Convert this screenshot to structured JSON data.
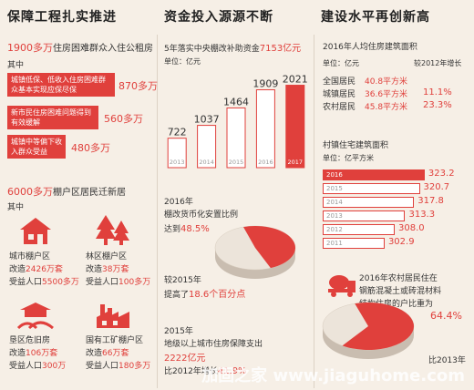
{
  "col1": {
    "heading": "保障工程扎实推进",
    "line1_num": "1900多万",
    "line1_text": "住房困难群众入住公租房",
    "sub": "其中",
    "groups": [
      {
        "label": "城镇低保、低收入住房困难群众基本实现应保尽保",
        "value": "870多万"
      },
      {
        "label": "新市民住房困难问题得到有效缓解",
        "value": "560多万"
      },
      {
        "label": "城镇中等偏下收入群众受益",
        "value": "480多万"
      }
    ],
    "line2_num": "6000多万",
    "line2_text": "棚户区居民迁新居",
    "sub2": "其中",
    "areas": [
      {
        "name": "城市棚户区",
        "rebuild_label": "改造",
        "rebuild": "2426万套",
        "people_label": "受益人口",
        "people": "5500多万"
      },
      {
        "name": "林区棚户区",
        "rebuild_label": "改造",
        "rebuild": "38万套",
        "people_label": "受益人口",
        "people": "100多万"
      },
      {
        "name": "垦区危旧房",
        "rebuild_label": "改造",
        "rebuild": "106万套",
        "people_label": "受益人口",
        "people": "300万"
      },
      {
        "name": "国有工矿棚户区",
        "rebuild_label": "改造",
        "rebuild": "66万套",
        "people_label": "受益人口",
        "people": "180多万"
      }
    ]
  },
  "col2": {
    "heading": "资金投入源源不断",
    "subtitle_text": "5年落实中央棚改补助资金",
    "subtitle_num": "7153亿元",
    "unit": "单位：亿元",
    "year_label": "2016年",
    "pie_title": "棚改货币化安置比例",
    "pie_pre": "达到",
    "pie_val": "48.5%",
    "pie_note1": "较2015年",
    "pie_note2_pre": "提高了",
    "pie_note2_num": "18.6个百分点",
    "bottom_year": "2015年",
    "bottom_line1": "地级以上城市住房保障支出",
    "bottom_line2": "2222亿元",
    "bottom_line3_pre": "比2012年增长",
    "bottom_line3_num": "41.9%"
  },
  "col3": {
    "heading": "建设水平再创新高",
    "table_title": "2016年人均住房建筑面积",
    "col_unit": "单位：亿元",
    "col_growth": "较2012年增长",
    "rows": [
      {
        "name": "全国居民",
        "area": "40.8平方米",
        "growth": ""
      },
      {
        "name": "城镇居民",
        "area": "36.6平方米",
        "growth": "11.1%"
      },
      {
        "name": "农村居民",
        "area": "45.8平方米",
        "growth": "23.3%"
      }
    ],
    "bar_title": "村镇住宅建筑面积",
    "bar_unit": "单位：亿平方米",
    "pie_text1": "2016年农村居民住在",
    "pie_text2": "钢筋混凝土或砖混材料",
    "pie_text3": "结构住房的户比重为",
    "pie_val": "64.4%",
    "pie_note": "比2013年",
    "watermark": "加固之家 www.jiaguhome.com"
  },
  "colors": {
    "accent": "#e0403c",
    "bg": "#f6efe6"
  },
  "chart_data": [
    {
      "type": "bar",
      "title": "5年落实中央棚改补助资金7153亿元",
      "ylabel": "单位：亿元",
      "categories": [
        "2013",
        "2014",
        "2015",
        "2016",
        "2017"
      ],
      "values": [
        722,
        1037,
        1464,
        1909,
        2021
      ],
      "ylim": [
        0,
        2100
      ]
    },
    {
      "type": "bar",
      "title": "村镇住宅建筑面积",
      "ylabel": "单位：亿平方米",
      "categories": [
        "2016",
        "2015",
        "2014",
        "2013",
        "2012",
        "2011"
      ],
      "values": [
        323.2,
        320.7,
        317.8,
        313.3,
        308.0,
        302.9
      ]
    },
    {
      "type": "pie",
      "title": "棚改货币化安置比例",
      "values": [
        48.5,
        51.5
      ]
    },
    {
      "type": "pie",
      "values": [
        64.4,
        35.6
      ]
    }
  ]
}
